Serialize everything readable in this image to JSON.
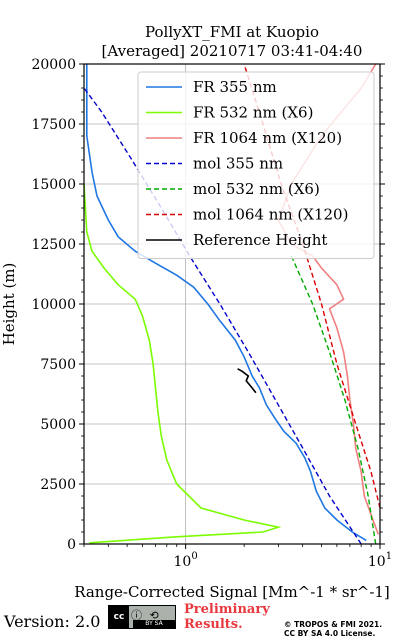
{
  "chart_data": {
    "type": "line",
    "title": "PollyXT_FMI at Kuopio",
    "subtitle": "[Averaged] 20210717 03:41-04:40",
    "xlabel": "Range-Corrected Signal [Mm^-1 * sr^-1]",
    "ylabel": "Height (m)",
    "xscale": "log",
    "xlim": [
      0.3,
      10
    ],
    "ylim": [
      0,
      20000
    ],
    "xticks": [
      {
        "value": 1,
        "label": "10^0"
      },
      {
        "value": 10,
        "label": "10^1"
      }
    ],
    "yticks": [
      0,
      2500,
      5000,
      7500,
      10000,
      12500,
      15000,
      17500,
      20000
    ],
    "ytick_labels": [
      "0",
      "2500",
      "5000",
      "7500",
      "10000",
      "12500",
      "15000",
      "17500",
      "20000"
    ],
    "grid": true,
    "legend_position": "top-right",
    "series": [
      {
        "name": "FR 355 nm",
        "color": "#1f77e4",
        "style": "solid",
        "points": [
          [
            8.5,
            150
          ],
          [
            7.2,
            500
          ],
          [
            6.0,
            1000
          ],
          [
            5.2,
            1500
          ],
          [
            4.7,
            2200
          ],
          [
            4.4,
            3000
          ],
          [
            4.1,
            3600
          ],
          [
            3.7,
            4200
          ],
          [
            3.2,
            4700
          ],
          [
            2.9,
            5200
          ],
          [
            2.6,
            5800
          ],
          [
            2.4,
            6500
          ],
          [
            2.2,
            7000
          ],
          [
            2.0,
            7800
          ],
          [
            1.8,
            8500
          ],
          [
            1.5,
            9300
          ],
          [
            1.3,
            10000
          ],
          [
            1.1,
            10700
          ],
          [
            0.9,
            11200
          ],
          [
            0.7,
            11700
          ],
          [
            0.55,
            12200
          ],
          [
            0.45,
            12800
          ],
          [
            0.4,
            13500
          ],
          [
            0.35,
            14500
          ],
          [
            0.33,
            15500
          ],
          [
            0.31,
            17000
          ],
          [
            0.31,
            20000
          ]
        ]
      },
      {
        "name": "FR 532 nm (X6)",
        "color": "#7cfc00",
        "style": "solid",
        "points": [
          [
            0.32,
            50
          ],
          [
            0.9,
            300
          ],
          [
            2.5,
            500
          ],
          [
            3.0,
            700
          ],
          [
            2.0,
            1000
          ],
          [
            1.2,
            1500
          ],
          [
            0.9,
            2500
          ],
          [
            0.8,
            3500
          ],
          [
            0.75,
            4500
          ],
          [
            0.72,
            5500
          ],
          [
            0.7,
            6500
          ],
          [
            0.68,
            7500
          ],
          [
            0.65,
            8500
          ],
          [
            0.6,
            9500
          ],
          [
            0.55,
            10200
          ],
          [
            0.45,
            10800
          ],
          [
            0.38,
            11500
          ],
          [
            0.33,
            12200
          ],
          [
            0.31,
            13000
          ],
          [
            0.3,
            15000
          ]
        ]
      },
      {
        "name": "FR 1064 nm (X120)",
        "color": "#f08080",
        "style": "solid",
        "points": [
          [
            9.8,
            400
          ],
          [
            9.2,
            1000
          ],
          [
            8.3,
            2000
          ],
          [
            8.0,
            3000
          ],
          [
            7.5,
            4000
          ],
          [
            7.3,
            5000
          ],
          [
            7.0,
            6000
          ],
          [
            6.8,
            7000
          ],
          [
            6.5,
            8000
          ],
          [
            6.0,
            9000
          ],
          [
            5.5,
            9800
          ],
          [
            6.5,
            10200
          ],
          [
            6.0,
            10800
          ],
          [
            5.0,
            11500
          ],
          [
            4.5,
            12000
          ],
          [
            3.5,
            12500
          ],
          [
            3.0,
            13500
          ],
          [
            3.5,
            15000
          ],
          [
            5.0,
            17000
          ],
          [
            8.0,
            19000
          ],
          [
            9.5,
            20000
          ]
        ]
      },
      {
        "name": "mol 355 nm",
        "color": "#0000cc",
        "style": "dashed",
        "points": [
          [
            8.0,
            0
          ],
          [
            5.5,
            2000
          ],
          [
            4.0,
            4000
          ],
          [
            2.9,
            6000
          ],
          [
            2.1,
            8000
          ],
          [
            1.5,
            10000
          ],
          [
            1.05,
            12000
          ],
          [
            0.75,
            14000
          ],
          [
            0.53,
            16000
          ],
          [
            0.37,
            18000
          ],
          [
            0.3,
            19000
          ]
        ]
      },
      {
        "name": "mol 532 nm (X6)",
        "color": "#00aa00",
        "style": "dashed",
        "points": [
          [
            9.5,
            0
          ],
          [
            8.7,
            2000
          ],
          [
            7.7,
            4000
          ],
          [
            6.6,
            6000
          ],
          [
            5.5,
            8000
          ],
          [
            4.5,
            10000
          ],
          [
            3.5,
            12000
          ]
        ]
      },
      {
        "name": "mol 1064 nm (X120)",
        "color": "#dd0000",
        "style": "dashed",
        "points": [
          [
            10.0,
            1500
          ],
          [
            9.0,
            3000
          ],
          [
            7.5,
            5000
          ],
          [
            6.0,
            7500
          ],
          [
            5.0,
            10000
          ],
          [
            4.0,
            12500
          ],
          [
            3.1,
            15000
          ],
          [
            2.5,
            17500
          ],
          [
            2.0,
            20000
          ]
        ]
      },
      {
        "name": "Reference Height",
        "color": "#000000",
        "style": "solid",
        "points": [
          [
            2.3,
            6300
          ],
          [
            2.2,
            6500
          ],
          [
            2.05,
            6800
          ],
          [
            2.1,
            7000
          ],
          [
            1.95,
            7200
          ],
          [
            1.85,
            7300
          ]
        ]
      }
    ]
  },
  "footer": {
    "version": "Version: 2.0",
    "cc_letters": "cc",
    "cc_text": "BY  SA",
    "preliminary_line1": "Preliminary",
    "preliminary_line2": "Results.",
    "license_line1": "© TROPOS & FMI 2021.",
    "license_line2": "CC BY SA 4.0 License."
  }
}
